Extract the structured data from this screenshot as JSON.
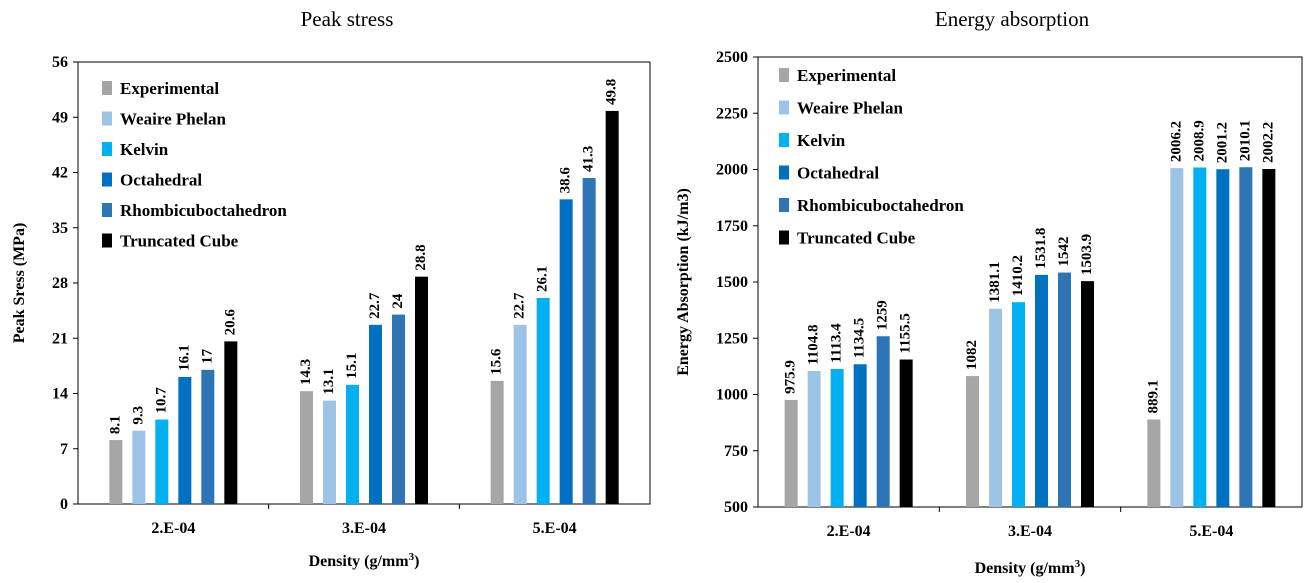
{
  "chart_data": [
    {
      "type": "bar",
      "title": "Peak stress",
      "xlabel": "Density (g/mm",
      "xlabel_sup": "3",
      "xlabel_close": ")",
      "ylabel": "Peak Sress (MPa)",
      "ylim": [
        0,
        56
      ],
      "yticks": [
        0,
        7,
        14,
        21,
        28,
        35,
        42,
        49,
        56
      ],
      "grid": false,
      "legend_position": "top-left",
      "categories": [
        "2.E-04",
        "3.E-04",
        "5.E-04"
      ],
      "series": [
        {
          "name": "Experimental",
          "color": "#a6a6a6",
          "values": [
            8.1,
            14.3,
            15.6
          ]
        },
        {
          "name": "Weaire Phelan",
          "color": "#9dc3e6",
          "values": [
            9.3,
            13.1,
            22.7
          ]
        },
        {
          "name": "Kelvin",
          "color": "#00b0f0",
          "values": [
            10.7,
            15.1,
            26.1
          ]
        },
        {
          "name": "Octahedral",
          "color": "#0070c0",
          "values": [
            16.1,
            22.7,
            38.6
          ]
        },
        {
          "name": "Rhombicuboctahedron",
          "color": "#2e75b6",
          "values": [
            17,
            24,
            41.3
          ]
        },
        {
          "name": "Truncated Cube",
          "color": "#000000",
          "values": [
            20.6,
            28.8,
            49.8
          ]
        }
      ]
    },
    {
      "type": "bar",
      "title": "Energy absorption",
      "xlabel": "Density (g/mm",
      "xlabel_sup": "3",
      "xlabel_close": ")",
      "ylabel": "Energy Absorption (kJ/m3)",
      "ylim": [
        500,
        2500
      ],
      "yticks": [
        500,
        750,
        1000,
        1250,
        1500,
        1750,
        2000,
        2250,
        2500
      ],
      "grid": false,
      "legend_position": "top-left",
      "categories": [
        "2.E-04",
        "3.E-04",
        "5.E-04"
      ],
      "series": [
        {
          "name": "Experimental",
          "color": "#a6a6a6",
          "values": [
            975.9,
            1082,
            889.1
          ]
        },
        {
          "name": "Weaire Phelan",
          "color": "#9dc3e6",
          "values": [
            1104.8,
            1381.1,
            2006.2
          ]
        },
        {
          "name": "Kelvin",
          "color": "#00b0f0",
          "values": [
            1113.4,
            1410.2,
            2008.9
          ]
        },
        {
          "name": "Octahedral",
          "color": "#0070c0",
          "values": [
            1134.5,
            1531.8,
            2001.2
          ]
        },
        {
          "name": "Rhombicuboctahedron",
          "color": "#2e75b6",
          "values": [
            1259,
            1542,
            2010.1
          ]
        },
        {
          "name": "Truncated Cube",
          "color": "#000000",
          "values": [
            1155.5,
            1503.9,
            2002.2
          ]
        }
      ]
    }
  ]
}
